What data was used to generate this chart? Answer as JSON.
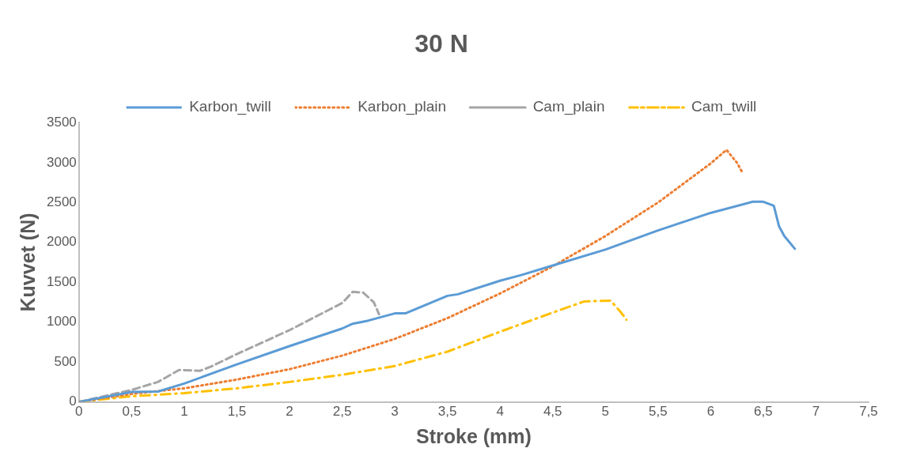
{
  "chart_data": {
    "type": "line",
    "title": "30 N",
    "xlabel": "Stroke (mm)",
    "ylabel": "Kuvvet (N)",
    "legend": "top",
    "grid": false,
    "marker": "none",
    "xlim": [
      0,
      7.5
    ],
    "xticks": [
      0,
      {
        "value": 0.5,
        "label": "0,5"
      },
      1,
      {
        "value": 1.5,
        "label": "1,5"
      },
      2,
      {
        "value": 2.5,
        "label": "2,5"
      },
      3,
      {
        "value": 3.5,
        "label": "3,5"
      },
      4,
      {
        "value": 4.5,
        "label": "4,5"
      },
      5,
      {
        "value": 5.5,
        "label": "5,5"
      },
      6,
      {
        "value": 6.5,
        "label": "6,5"
      },
      7,
      {
        "value": 7.5,
        "label": "7,5"
      }
    ],
    "ylim": [
      0,
      3500
    ],
    "yticks": [
      0,
      500,
      1000,
      1500,
      2000,
      2500,
      3000,
      3500
    ],
    "series": [
      {
        "name": "Karbon_twill",
        "color": "#5b9bd5",
        "line_style": "solid",
        "x": [
          0,
          0.5,
          0.75,
          1,
          1.5,
          2,
          2.5,
          2.6,
          2.75,
          3,
          3.1,
          3.5,
          3.6,
          4,
          4.2,
          4.5,
          5,
          5.5,
          6,
          6.4,
          6.5,
          6.6,
          6.65,
          6.7,
          6.8
        ],
        "values": [
          0,
          125,
          130,
          230,
          470,
          700,
          920,
          980,
          1020,
          1110,
          1110,
          1330,
          1350,
          1520,
          1590,
          1710,
          1910,
          2150,
          2370,
          2510,
          2510,
          2460,
          2200,
          2080,
          1920
        ]
      },
      {
        "name": "Karbon_plain",
        "color": "#ed7d31",
        "line_style": "dotted",
        "x": [
          0,
          0.5,
          1,
          1.5,
          2,
          2.5,
          3,
          3.5,
          4,
          4.5,
          5,
          5.5,
          6,
          6.15,
          6.25,
          6.3
        ],
        "values": [
          0,
          100,
          170,
          280,
          410,
          580,
          790,
          1050,
          1360,
          1700,
          2080,
          2500,
          2990,
          3160,
          3000,
          2880
        ]
      },
      {
        "name": "Cam_plain",
        "color": "#a5a5a5",
        "line_style": "dashed",
        "x": [
          0,
          0.5,
          0.75,
          0.95,
          1.15,
          1.25,
          1.5,
          2,
          2.5,
          2.6,
          2.7,
          2.8,
          2.85
        ],
        "values": [
          0,
          150,
          250,
          400,
          390,
          440,
          600,
          900,
          1240,
          1380,
          1370,
          1250,
          1100
        ]
      },
      {
        "name": "Cam_twill",
        "color": "#ffc000",
        "line_style": "dashdot",
        "x": [
          0,
          0.5,
          1,
          1.5,
          2,
          2.5,
          3,
          3.5,
          4,
          4.5,
          4.8,
          5.05,
          5.15,
          5.2
        ],
        "values": [
          0,
          70,
          110,
          170,
          250,
          340,
          450,
          630,
          880,
          1120,
          1260,
          1270,
          1120,
          1030
        ]
      }
    ]
  }
}
